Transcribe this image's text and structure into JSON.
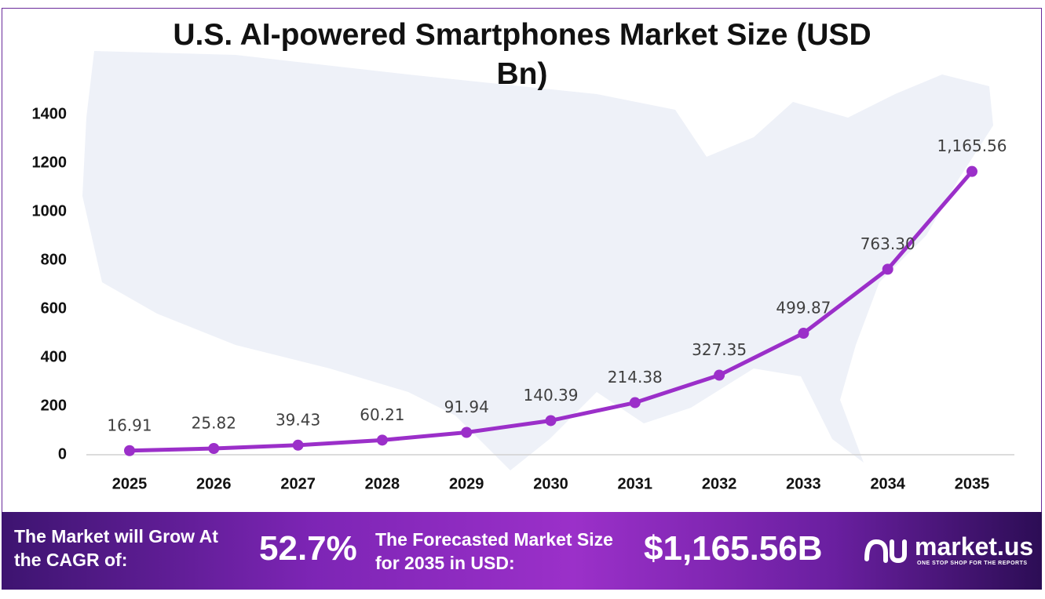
{
  "chart_data": {
    "type": "line",
    "title": "U.S. AI-powered Smartphones Market Size (USD Bn)",
    "categories": [
      "2025",
      "2026",
      "2027",
      "2028",
      "2029",
      "2030",
      "2031",
      "2032",
      "2033",
      "2034",
      "2035"
    ],
    "values": [
      16.91,
      25.82,
      39.43,
      60.21,
      91.94,
      140.39,
      214.38,
      327.35,
      499.87,
      763.3,
      1165.56
    ],
    "value_labels": [
      "16.91",
      "25.82",
      "39.43",
      "60.21",
      "91.94",
      "140.39",
      "214.38",
      "327.35",
      "499.87",
      "763.30",
      "1,165.56"
    ],
    "color": "#9b2fc9",
    "ylim": [
      0,
      1400
    ],
    "yticks": [
      0,
      200,
      400,
      600,
      800,
      1000,
      1200,
      1400
    ],
    "grid": false
  },
  "footer": {
    "cagr_text": "The Market will Grow At the CAGR of:",
    "cagr": "52.7%",
    "forecast_text": "The Forecasted Market Size for 2035 in USD:",
    "forecast": "$1,165.56B",
    "brand": "market.us",
    "tagline": "ONE STOP SHOP FOR THE REPORTS"
  }
}
